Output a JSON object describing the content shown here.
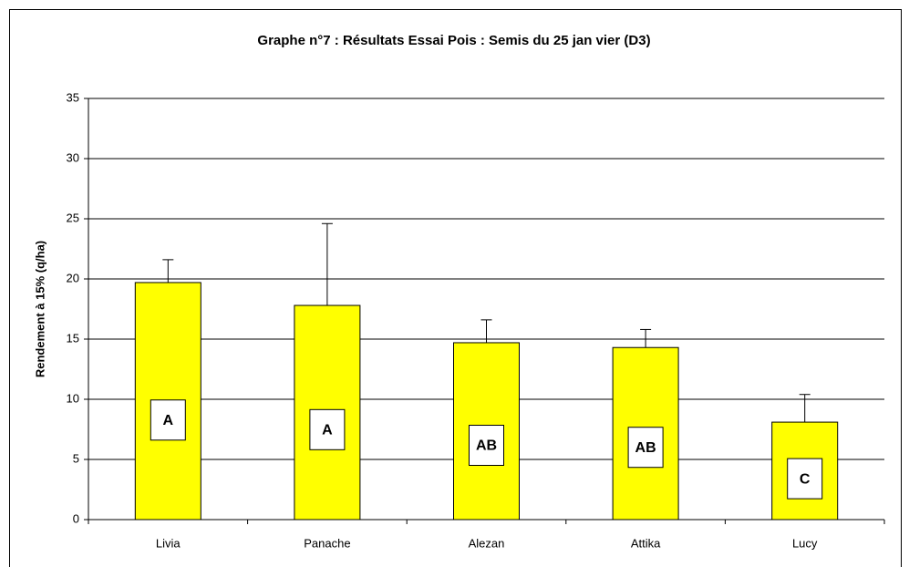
{
  "chart_data": {
    "type": "bar",
    "title": "Graphe n°7 : Résultats Essai Pois : Semis du 25 jan vier (D3)",
    "y_label": "Rendement à 15% (q/ha)",
    "categories": [
      "Livia",
      "Panache",
      "Alezan",
      "Attika",
      "Lucy"
    ],
    "values": [
      19.7,
      17.8,
      14.7,
      14.3,
      8.1
    ],
    "errors": [
      1.9,
      6.8,
      1.9,
      1.5,
      2.3
    ],
    "annotations": [
      "A",
      "A",
      "AB",
      "AB",
      "C"
    ],
    "color": "#ffff00",
    "ylim": [
      0,
      35
    ],
    "yticks": [
      0,
      5,
      10,
      15,
      20,
      25,
      30,
      35
    ],
    "grid": true
  }
}
